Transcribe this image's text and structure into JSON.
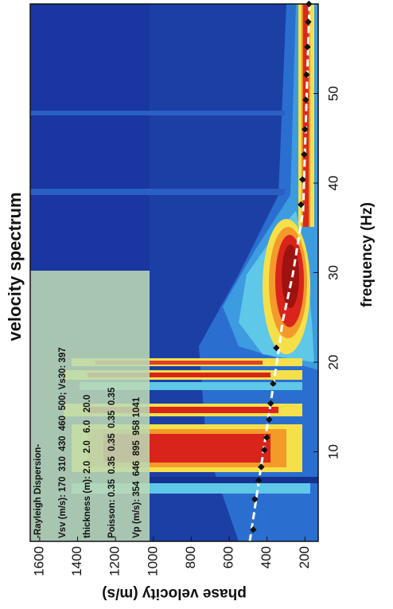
{
  "chart_data": {
    "type": "scatter",
    "title": "velocity spectrum",
    "x_label": "frequency (Hz)",
    "y_label": "phase velocity (m/s)",
    "xlim": [
      0,
      60
    ],
    "ylim": [
      130,
      1650
    ],
    "xticks": [
      10,
      20,
      30,
      40,
      50
    ],
    "yticks": [
      200,
      400,
      600,
      800,
      1000,
      1200,
      1400,
      1600
    ],
    "grid": false,
    "series": [
      {
        "color": "#111111",
        "x": [
          1.3,
          4.7,
          6.8,
          8.3,
          10.2,
          11.6,
          13.6,
          15.4,
          17.6,
          21.6,
          37.6,
          40.4,
          43.2,
          46,
          49.3,
          52.1,
          55.2,
          58,
          60
        ],
        "values": [
          473,
          465,
          444,
          431,
          414,
          402,
          389,
          381,
          368,
          351,
          221,
          213,
          204,
          200,
          196,
          192,
          187,
          183,
          179
        ]
      }
    ],
    "annotation": [
      "-Rayleigh Dispersion-",
      "Vsv (m/s): 170  310  430  460  500; Vs30: 397",
      "thickness (m): 2.0   2.0   6.0   20.0",
      "Poisson: 0.35  0.35  0.35  0.35  0.35",
      "Vp (m/s): 354  646  895  958 1041"
    ]
  }
}
